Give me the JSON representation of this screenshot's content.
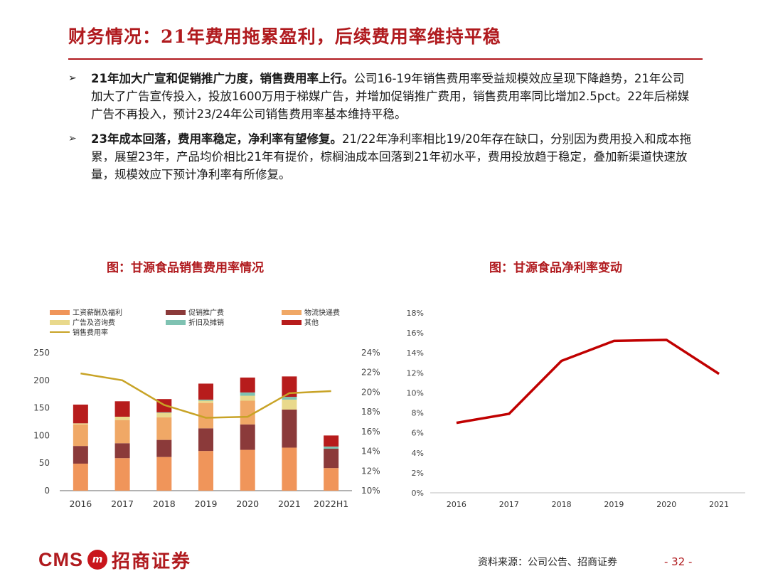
{
  "slide": {
    "title": "财务情况：21年费用拖累盈利，后续费用率维持平稳",
    "bullets": [
      {
        "marker": "➢",
        "bold": "21年加大广宣和促销推广力度，销售费用率上行。",
        "text": "公司16-19年销售费用率受益规模效应呈现下降趋势，21年公司加大了广告宣传投入，投放1600万用于梯媒广告，并增加促销推广费用，销售费用率同比增加2.5pct。22年后梯媒广告不再投入，预计23/24年公司销售费用率基本维持平稳。"
      },
      {
        "marker": "➢",
        "bold": "23年成本回落，费用率稳定，净利率有望修复。",
        "text": "21/22年净利率相比19/20年存在缺口，分别因为费用投入和成本拖累，展望23年，产品均价相比21年有提价，棕榈油成本回落到21年初水平，费用投放趋于稳定，叠加新渠道快速放量，规模效应下预计净利率有所修复。"
      }
    ],
    "left_chart_title": "图：甘源食品销售费用率情况",
    "right_chart_title": "图：甘源食品净利率变动",
    "source": "资料来源：公司公告、招商证券",
    "page": "- 32 -",
    "logo": {
      "latin": "CMS",
      "badge": "m",
      "chinese": "招商证券"
    }
  },
  "chart_data": [
    {
      "type": "bar",
      "stacked": true,
      "categories": [
        "2016",
        "2017",
        "2018",
        "2019",
        "2020",
        "2021",
        "2022H1"
      ],
      "ylim": [
        0,
        250
      ],
      "yticks": [
        0,
        50,
        100,
        150,
        200,
        250
      ],
      "y2lim": [
        0.1,
        0.24
      ],
      "y2ticks": [
        "10%",
        "12%",
        "14%",
        "16%",
        "18%",
        "20%",
        "22%",
        "24%"
      ],
      "legend_position": "top",
      "series": [
        {
          "name": "工资薪酬及福利",
          "color": "#f0955a",
          "values": [
            49,
            59,
            61,
            72,
            74,
            78,
            41
          ]
        },
        {
          "name": "促销推广费",
          "color": "#8b3a3a",
          "values": [
            32,
            27,
            31,
            41,
            46,
            69,
            35
          ]
        },
        {
          "name": "物流快递费",
          "color": "#f0a866",
          "values": [
            39,
            42,
            41,
            46,
            43,
            0,
            0
          ]
        },
        {
          "name": "广告及咨询费",
          "color": "#e9d98c",
          "values": [
            2,
            6,
            8,
            4,
            9,
            18,
            0
          ]
        },
        {
          "name": "折旧及摊销",
          "color": "#7fc2b2",
          "values": [
            0,
            0,
            1,
            2,
            6,
            5,
            4
          ]
        },
        {
          "name": "其他",
          "color": "#b71c1c",
          "values": [
            34,
            28,
            24,
            29,
            27,
            37,
            20
          ]
        }
      ],
      "line": {
        "name": "销售费用率",
        "color": "#c8a326",
        "values": [
          0.219,
          0.212,
          0.187,
          0.174,
          0.175,
          0.199,
          0.201
        ]
      }
    },
    {
      "type": "line",
      "categories": [
        "2016",
        "2017",
        "2018",
        "2019",
        "2020",
        "2021"
      ],
      "ylim": [
        0,
        0.18
      ],
      "yticks": [
        "0%",
        "2%",
        "4%",
        "6%",
        "8%",
        "10%",
        "12%",
        "14%",
        "16%",
        "18%"
      ],
      "series": [
        {
          "color": "#c00000",
          "values": [
            0.07,
            0.079,
            0.132,
            0.152,
            0.153,
            0.119
          ]
        }
      ]
    }
  ]
}
